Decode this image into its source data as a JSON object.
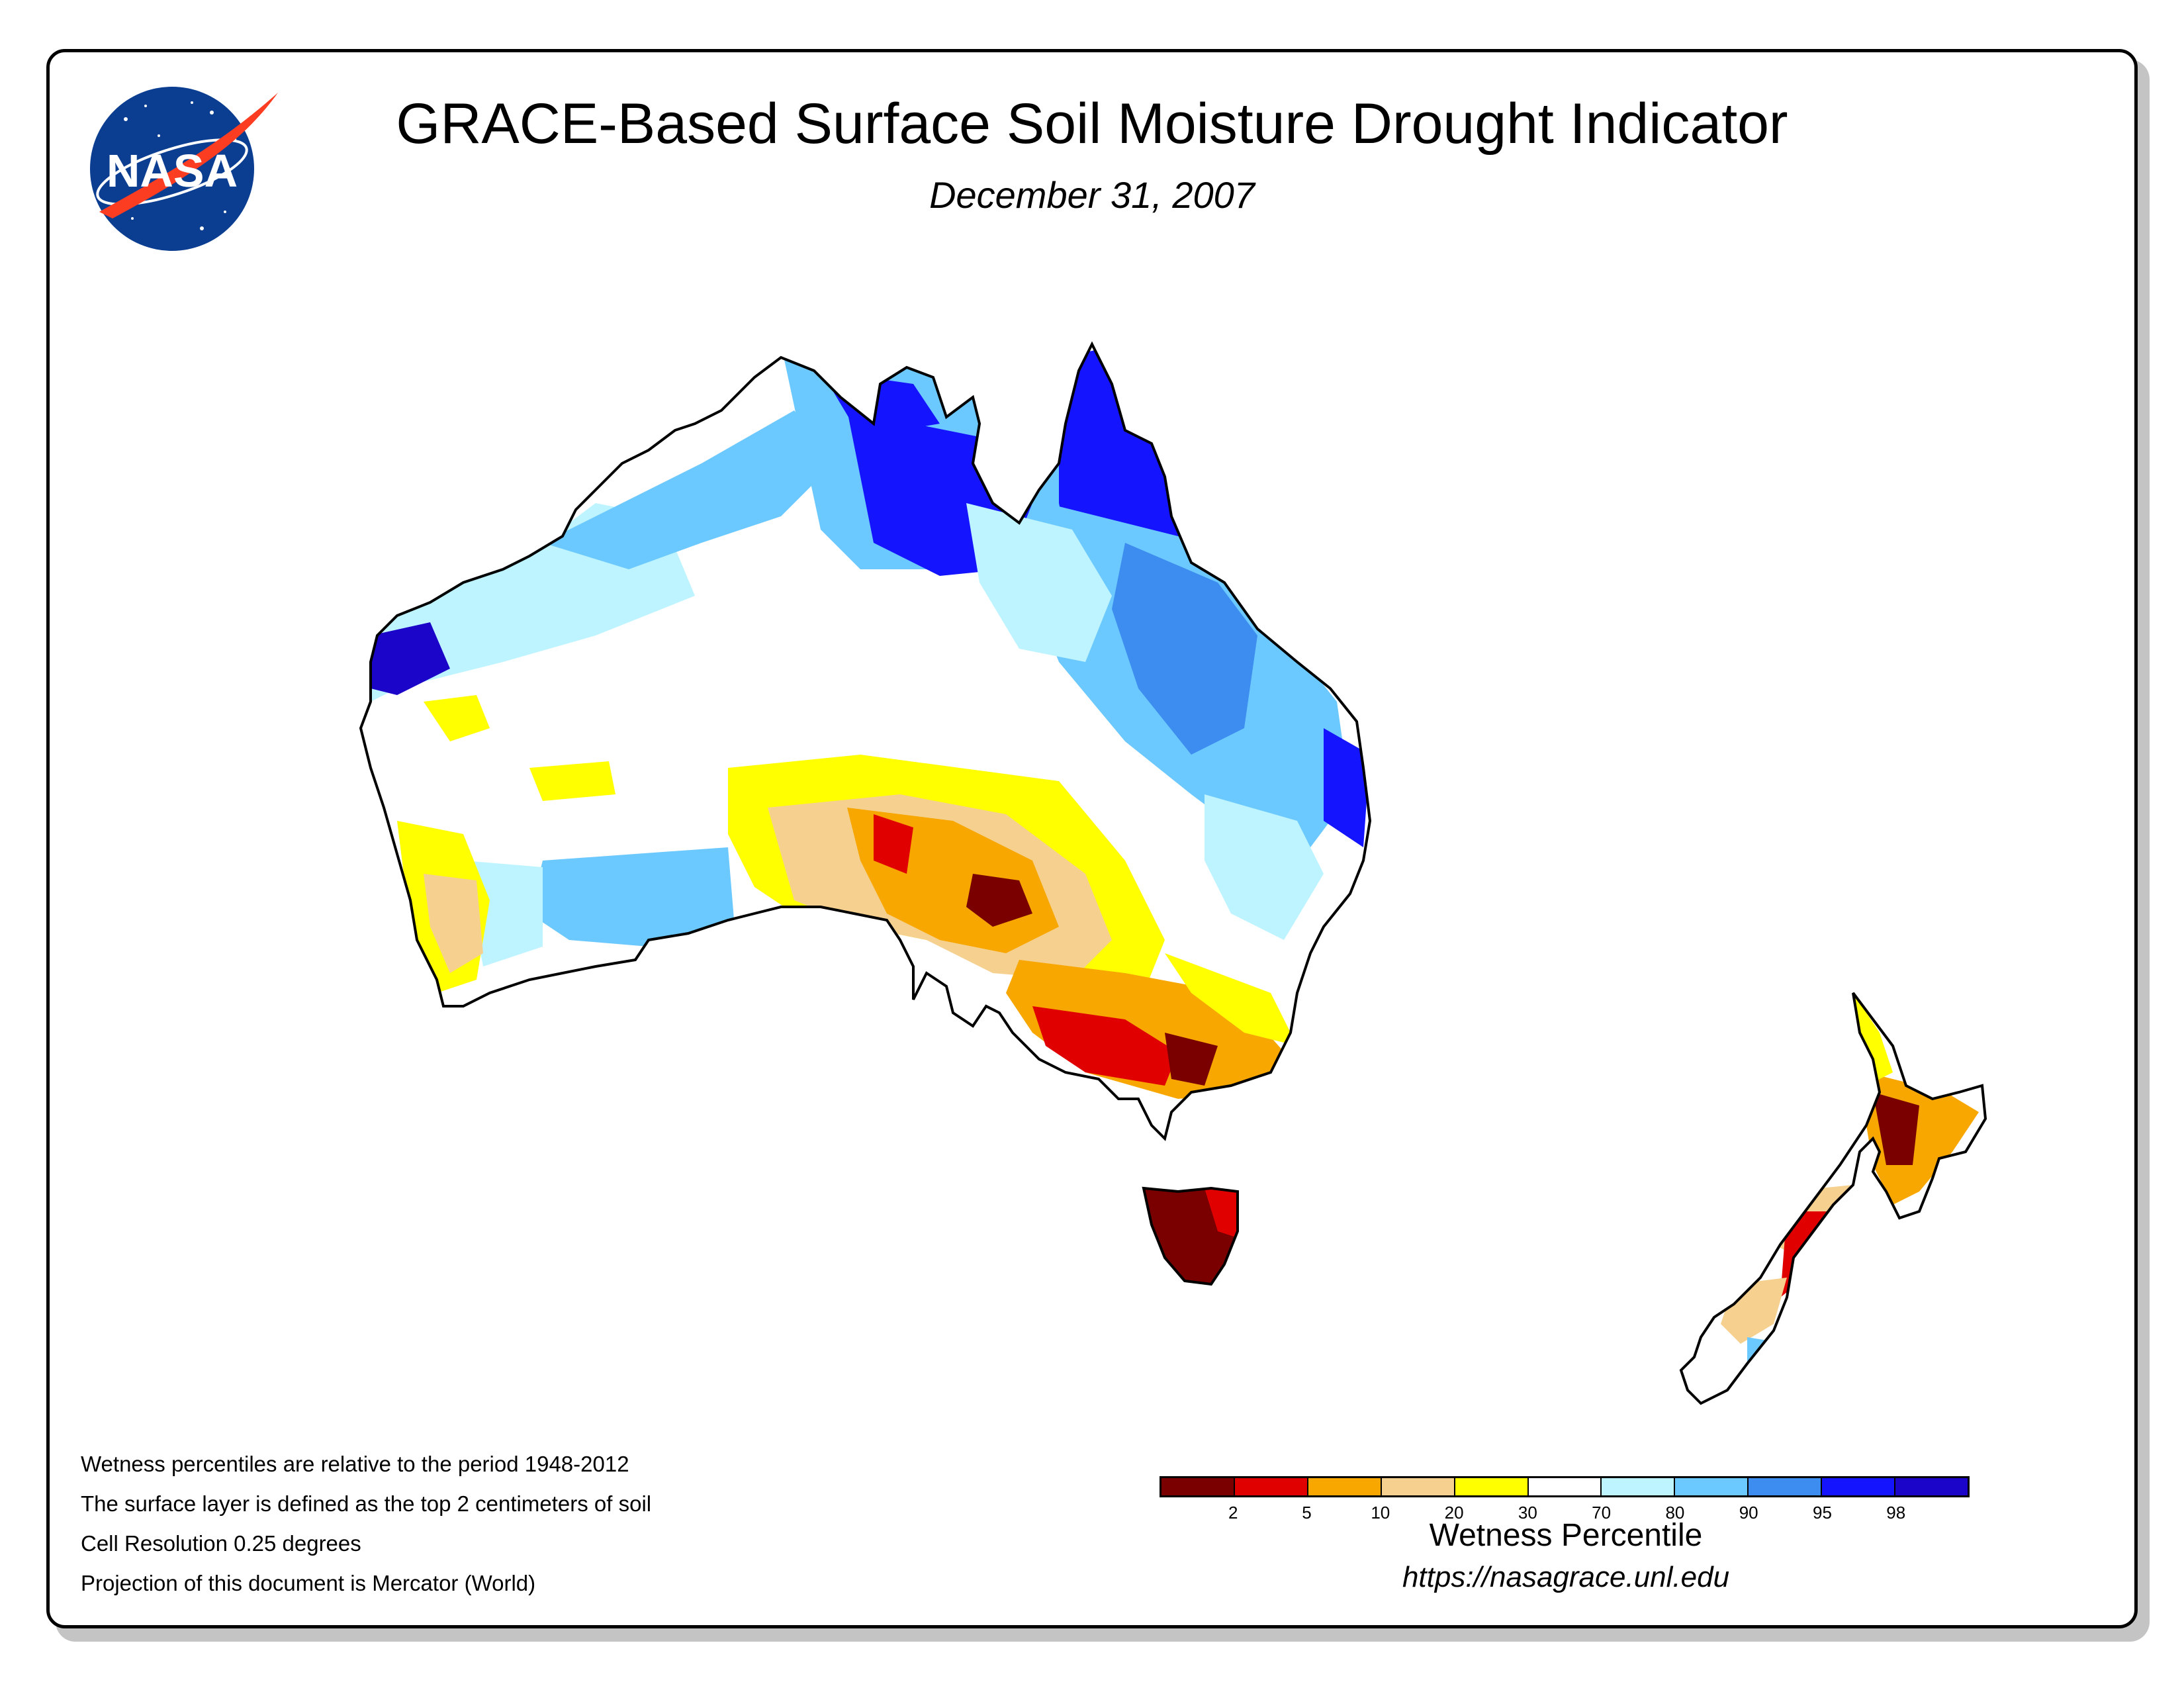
{
  "header": {
    "title": "GRACE-Based Surface Soil Moisture Drought Indicator",
    "date": "December 31, 2007",
    "logo_text": "NASA"
  },
  "notes": [
    "Wetness percentiles are relative to the period 1948-2012",
    "The surface layer is defined as the top 2 centimeters of soil",
    "Cell Resolution 0.25 degrees",
    "Projection of this document is Mercator (World)"
  ],
  "legend": {
    "title": "Wetness Percentile",
    "url": "https://nasagrace.unl.edu",
    "colors": [
      "#7a0000",
      "#e00000",
      "#f7a700",
      "#f6d08e",
      "#ffff00",
      "#ffffff",
      "#bdf4ff",
      "#6cc9ff",
      "#3d8cf0",
      "#1414ff",
      "#1b05c9"
    ],
    "tick_labels": [
      "2",
      "5",
      "10",
      "20",
      "30",
      "70",
      "80",
      "90",
      "95",
      "98"
    ]
  },
  "map_colors": {
    "land_outline": "#000000",
    "dark_red": "#7a0000",
    "red": "#e00000",
    "orange": "#f7a700",
    "tan": "#f6d08e",
    "yellow": "#ffff00",
    "white": "#ffffff",
    "light_cyan": "#bdf4ff",
    "light_blue": "#6cc9ff",
    "mid_blue": "#3d8cf0",
    "blue": "#1414ff",
    "deep_blue": "#1b05c9"
  }
}
